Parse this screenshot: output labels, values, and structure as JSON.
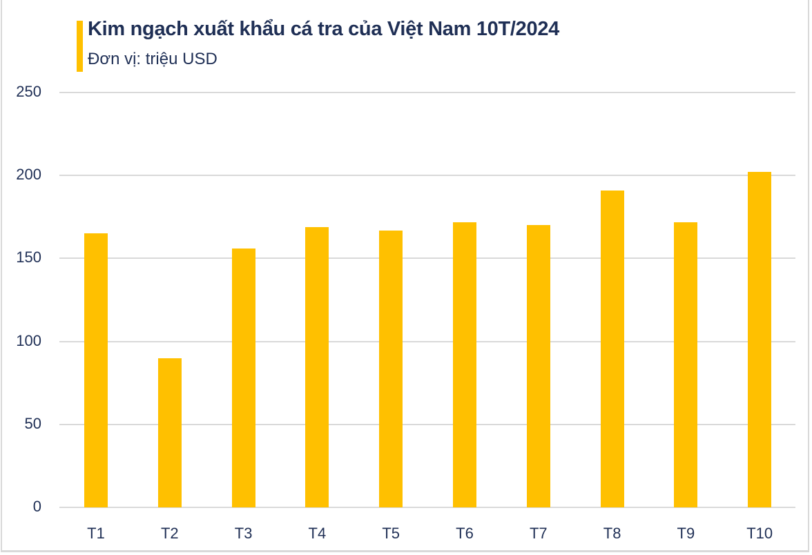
{
  "header": {
    "title": "Kim ngạch xuất khẩu cá tra của Việt Nam 10T/2024",
    "subtitle": "Đơn vị: triệu USD"
  },
  "colors": {
    "bar": "#FFC000",
    "accent": "#FFC000",
    "text": "#1F2F55",
    "grid": "#D9D9D9"
  },
  "chart_data": {
    "type": "bar",
    "title": "Kim ngạch xuất khẩu cá tra của Việt Nam 10T/2024",
    "subtitle": "Đơn vị: triệu USD",
    "xlabel": "",
    "ylabel": "",
    "categories": [
      "T1",
      "T2",
      "T3",
      "T4",
      "T5",
      "T6",
      "T7",
      "T8",
      "T9",
      "T10"
    ],
    "values": [
      165,
      90,
      156,
      169,
      167,
      172,
      170,
      191,
      172,
      202
    ],
    "ylim": [
      0,
      250
    ],
    "yticks": [
      "0",
      "50",
      "100",
      "150",
      "200",
      "250"
    ],
    "grid": true,
    "legend": "none"
  }
}
